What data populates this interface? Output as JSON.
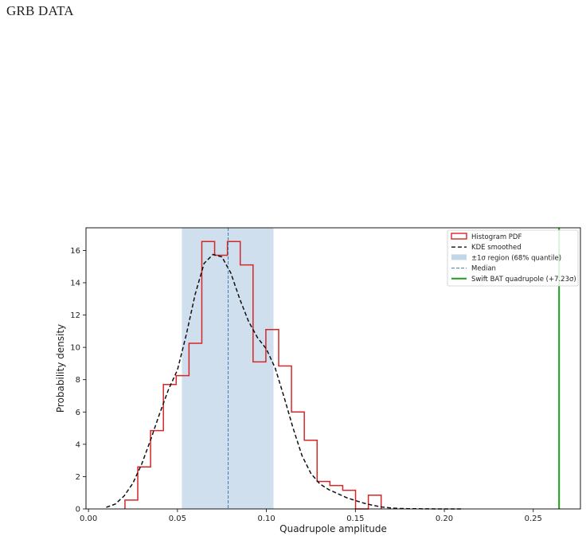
{
  "header": {
    "title": "GRB DATA"
  },
  "chart_data": {
    "type": "histogram",
    "xlabel": "Quadrupole amplitude",
    "ylabel": "Probability density",
    "xlim": [
      -0.0014,
      0.2765
    ],
    "ylim": [
      0,
      17.4
    ],
    "x_ticks": [
      0.0,
      0.05,
      0.1,
      0.15,
      0.2,
      0.25
    ],
    "x_tick_labels": [
      "0.00",
      "0.05",
      "0.10",
      "0.15",
      "0.20",
      "0.25"
    ],
    "y_ticks": [
      0,
      2,
      4,
      6,
      8,
      10,
      12,
      14,
      16
    ],
    "y_tick_labels": [
      "0",
      "2",
      "4",
      "6",
      "8",
      "10",
      "12",
      "14",
      "16"
    ],
    "grid": false,
    "legend_position": "top-right",
    "histogram": {
      "name": "Histogram PDF",
      "color": "#d62728",
      "bin_edges": [
        0.0205,
        0.0277,
        0.0349,
        0.0421,
        0.0493,
        0.0565,
        0.0637,
        0.0709,
        0.0781,
        0.0853,
        0.0925,
        0.0997,
        0.1069,
        0.1141,
        0.1213,
        0.1285,
        0.1357,
        0.1429,
        0.1501,
        0.1573,
        0.1645
      ],
      "densities": [
        0.55,
        2.6,
        4.85,
        7.7,
        8.25,
        10.25,
        16.55,
        15.7,
        16.55,
        15.1,
        9.1,
        11.1,
        8.85,
        6.0,
        4.25,
        1.7,
        1.45,
        1.15,
        0.0,
        0.85
      ]
    },
    "kde": {
      "name": "KDE smoothed",
      "color": "#111111",
      "x": [
        0.01,
        0.015,
        0.02,
        0.025,
        0.03,
        0.035,
        0.04,
        0.045,
        0.05,
        0.055,
        0.06,
        0.065,
        0.07,
        0.075,
        0.08,
        0.085,
        0.09,
        0.095,
        0.1,
        0.105,
        0.11,
        0.115,
        0.12,
        0.125,
        0.13,
        0.135,
        0.14,
        0.145,
        0.15,
        0.155,
        0.16,
        0.165,
        0.17,
        0.175,
        0.18,
        0.19,
        0.2,
        0.21
      ],
      "y": [
        0.1,
        0.3,
        0.8,
        1.6,
        2.8,
        4.3,
        5.9,
        7.4,
        8.6,
        10.8,
        13.3,
        15.2,
        15.75,
        15.6,
        14.6,
        13.0,
        11.6,
        10.6,
        9.9,
        8.7,
        6.9,
        5.0,
        3.3,
        2.2,
        1.55,
        1.2,
        0.95,
        0.7,
        0.52,
        0.35,
        0.22,
        0.12,
        0.06,
        0.03,
        0.015,
        0.005,
        0.0,
        0.0
      ]
    },
    "sigma_region": {
      "name": "±1σ region (68% quantile)",
      "x0": 0.0525,
      "x1": 0.104,
      "color": "#a7c4de"
    },
    "median": {
      "name": "Median",
      "x": 0.0785,
      "color": "#4a78b0"
    },
    "swift_bat": {
      "name": "Swift BAT quadrupole (+7.23σ)",
      "x": 0.2645,
      "color": "#1a9e1a"
    }
  }
}
